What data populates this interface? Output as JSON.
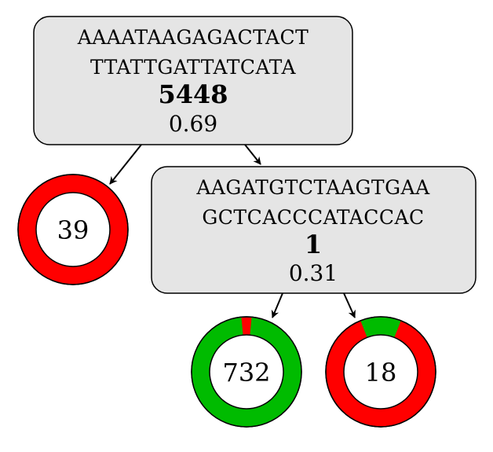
{
  "colors": {
    "node_fill": "#e5e5e5",
    "node_stroke": "#000000",
    "red": "#ff0000",
    "green": "#00bb00"
  },
  "nodes": {
    "root": {
      "seq_line1": "AAAATAAGAGACTACT",
      "seq_line2": "TTATTGATTATCATA",
      "feature": "5448",
      "score": "0.69"
    },
    "child": {
      "seq_line1": "AAGATGTCTAAGTGAA",
      "seq_line2": "GCTCACCCATACCAC",
      "feature": "1",
      "score": "0.31"
    }
  },
  "leaves": {
    "left": {
      "count": "39",
      "green_fraction": 0
    },
    "middle": {
      "count": "732",
      "green_fraction": 0.97
    },
    "right": {
      "count": "18",
      "green_fraction": 0.12
    }
  }
}
